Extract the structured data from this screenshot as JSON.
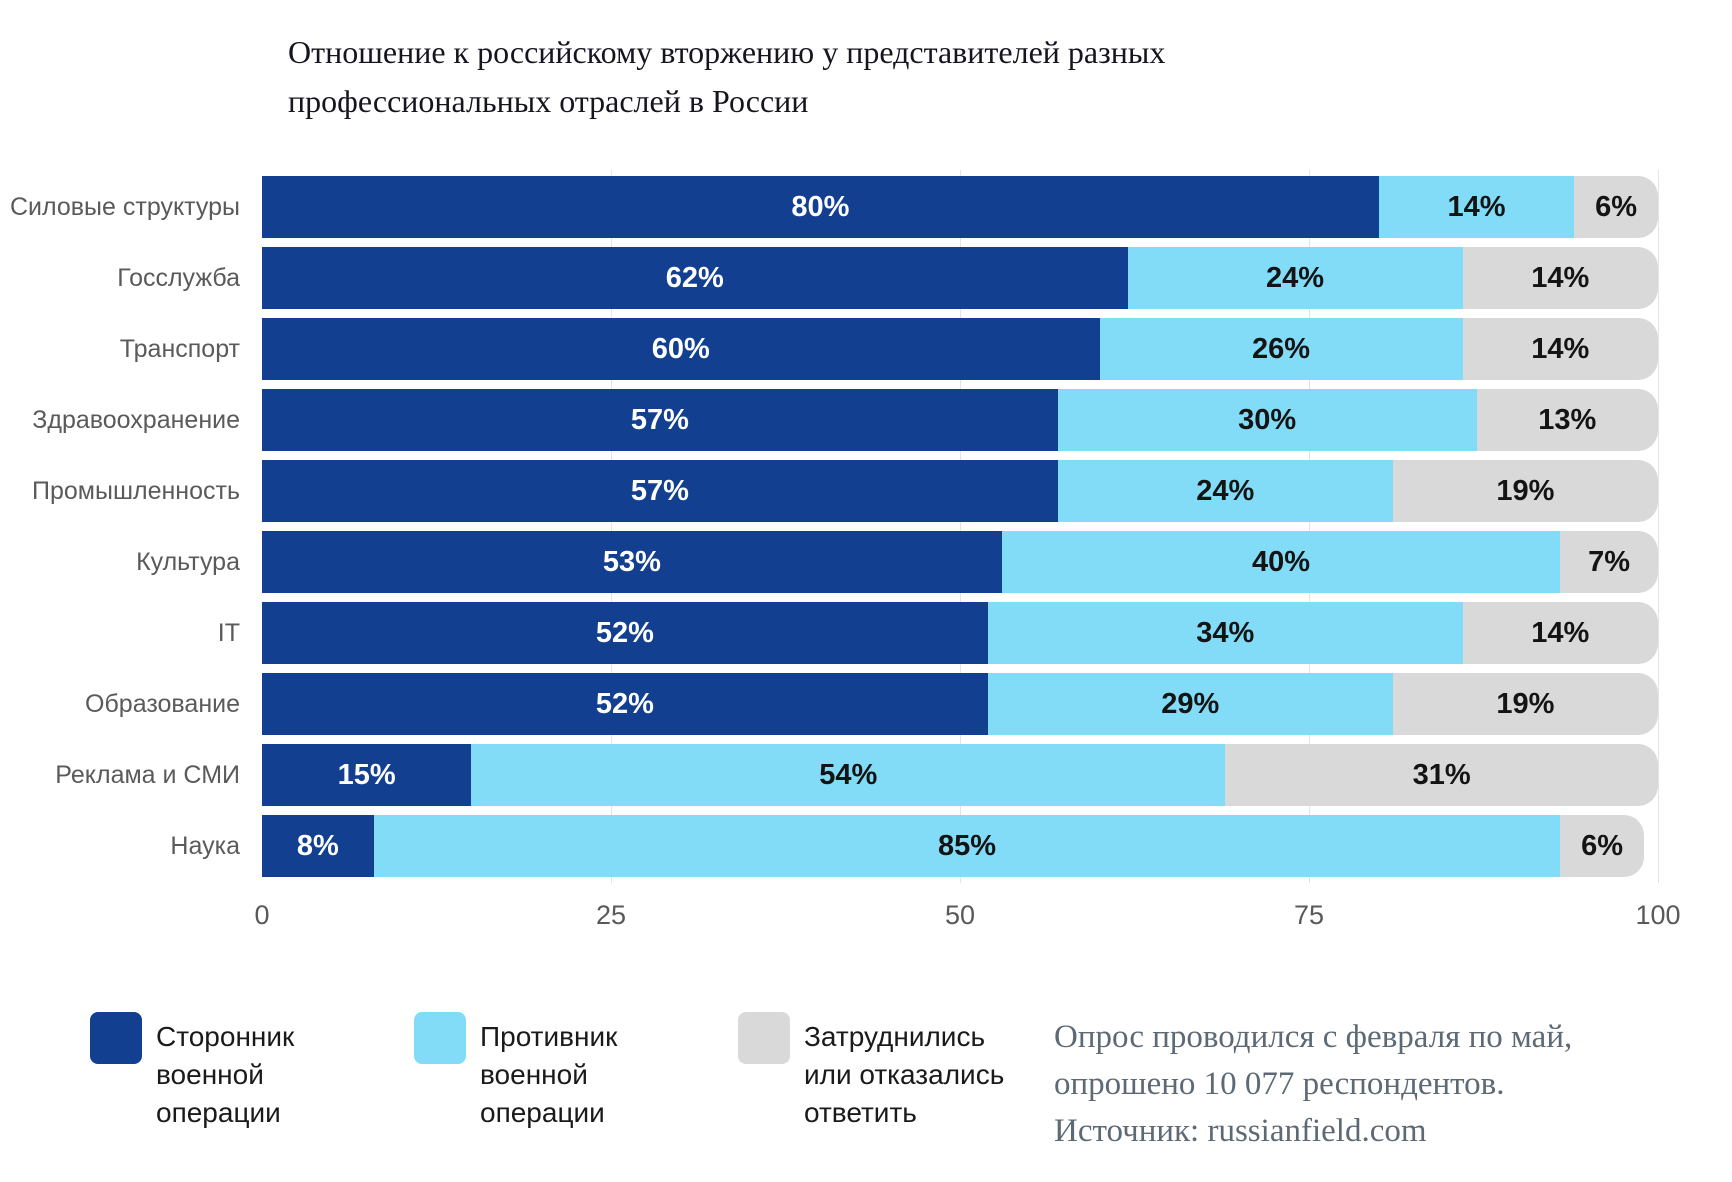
{
  "title": {
    "lines": [
      "Отношение к российскому вторжению у представителей разных",
      "профессиональных отраслей в России"
    ]
  },
  "chart_data": {
    "type": "bar",
    "orientation": "horizontal",
    "stacked": true,
    "title": "Отношение к российскому вторжению у представителей разных профессиональных отраслей в России",
    "categories": [
      "Силовые структуры",
      "Госслужба",
      "Транспорт",
      "Здравоохранение",
      "Промышленность",
      "Культура",
      "IT",
      "Образование",
      "Реклама и СМИ",
      "Наука"
    ],
    "series": [
      {
        "name": "Сторонник военной операции",
        "color": "#123f8f",
        "text_color": "#ffffff",
        "values": [
          80,
          62,
          60,
          57,
          57,
          53,
          52,
          52,
          15,
          8
        ]
      },
      {
        "name": "Противник военной операции",
        "color": "#82dcf7",
        "text_color": "#141414",
        "values": [
          14,
          24,
          26,
          30,
          24,
          40,
          34,
          29,
          54,
          85
        ]
      },
      {
        "name": "Затруднились или отказались ответить",
        "color": "#d9d9d9",
        "text_color": "#141414",
        "values": [
          6,
          14,
          14,
          13,
          19,
          7,
          14,
          19,
          31,
          6
        ]
      }
    ],
    "value_suffix": "%",
    "xlim": [
      0,
      100
    ],
    "x_ticks": [
      "0",
      "25",
      "50",
      "75",
      "100"
    ],
    "grid": true,
    "legend_position": "bottom-left"
  },
  "footer": {
    "lines": [
      "Опрос проводился с февраля по май,",
      "опрошено 10 077 респондентов.",
      "Источник: russianfield.com"
    ]
  }
}
